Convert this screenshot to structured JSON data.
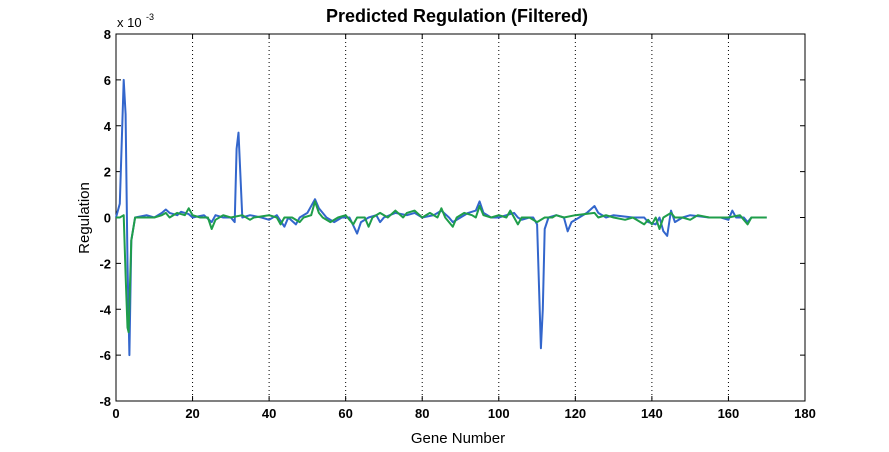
{
  "chart_data": {
    "type": "line",
    "title": "Predicted Regulation (Filtered)",
    "xlabel": "Gene Number",
    "ylabel": "Regulation",
    "y_exponent_label": "x 10",
    "y_exponent_power": "-3",
    "xlim": [
      0,
      180
    ],
    "ylim": [
      -8,
      8
    ],
    "xticks": [
      0,
      20,
      40,
      60,
      80,
      100,
      120,
      140,
      160,
      180
    ],
    "yticks": [
      -8,
      -6,
      -4,
      -2,
      0,
      2,
      4,
      6,
      8
    ],
    "x_grid": "dotted vertical lines at x ticks",
    "y_grid": false,
    "legend": "none",
    "series": [
      {
        "color": "#3366cc",
        "points": [
          [
            0,
            0.0
          ],
          [
            1,
            0.6
          ],
          [
            2,
            6.0
          ],
          [
            2.5,
            4.5
          ],
          [
            3,
            -2.0
          ],
          [
            3.5,
            -6.0
          ],
          [
            4,
            -1.0
          ],
          [
            5,
            0.0
          ],
          [
            8,
            0.1
          ],
          [
            10,
            0.0
          ],
          [
            12,
            0.2
          ],
          [
            13,
            0.35
          ],
          [
            14,
            0.2
          ],
          [
            16,
            0.1
          ],
          [
            17,
            0.25
          ],
          [
            19,
            0.15
          ],
          [
            20,
            0.0
          ],
          [
            23,
            0.1
          ],
          [
            25,
            -0.2
          ],
          [
            26,
            0.1
          ],
          [
            28,
            0.0
          ],
          [
            30,
            0.0
          ],
          [
            31,
            -0.2
          ],
          [
            31.5,
            3.0
          ],
          [
            32,
            3.7
          ],
          [
            33,
            0.0
          ],
          [
            35,
            0.1
          ],
          [
            38,
            0.0
          ],
          [
            40,
            -0.1
          ],
          [
            42,
            0.1
          ],
          [
            44,
            -0.4
          ],
          [
            45,
            0.0
          ],
          [
            47,
            -0.3
          ],
          [
            48,
            0.0
          ],
          [
            50,
            0.2
          ],
          [
            52,
            0.8
          ],
          [
            53,
            0.4
          ],
          [
            55,
            0.0
          ],
          [
            57,
            -0.2
          ],
          [
            59,
            0.0
          ],
          [
            61,
            0.0
          ],
          [
            63,
            -0.7
          ],
          [
            64,
            -0.2
          ],
          [
            66,
            0.0
          ],
          [
            68,
            0.1
          ],
          [
            69,
            -0.2
          ],
          [
            70,
            0.0
          ],
          [
            73,
            0.2
          ],
          [
            76,
            0.1
          ],
          [
            78,
            0.2
          ],
          [
            80,
            0.0
          ],
          [
            83,
            0.1
          ],
          [
            85,
            0.3
          ],
          [
            87,
            0.0
          ],
          [
            88,
            -0.2
          ],
          [
            90,
            0.0
          ],
          [
            92,
            0.2
          ],
          [
            94,
            0.3
          ],
          [
            95,
            0.7
          ],
          [
            96,
            0.2
          ],
          [
            98,
            0.0
          ],
          [
            100,
            0.0
          ],
          [
            102,
            0.1
          ],
          [
            104,
            0.2
          ],
          [
            105,
            0.0
          ],
          [
            106,
            -0.1
          ],
          [
            108,
            0.0
          ],
          [
            109,
            0.0
          ],
          [
            110,
            -0.3
          ],
          [
            110.5,
            -3.0
          ],
          [
            111,
            -5.7
          ],
          [
            111.5,
            -4.0
          ],
          [
            112,
            -0.5
          ],
          [
            113,
            0.0
          ],
          [
            115,
            0.1
          ],
          [
            117,
            0.0
          ],
          [
            118,
            -0.6
          ],
          [
            119,
            -0.2
          ],
          [
            121,
            0.0
          ],
          [
            123,
            0.2
          ],
          [
            125,
            0.5
          ],
          [
            126,
            0.2
          ],
          [
            128,
            0.0
          ],
          [
            130,
            0.1
          ],
          [
            135,
            0.0
          ],
          [
            138,
            0.0
          ],
          [
            139,
            -0.2
          ],
          [
            141,
            -0.3
          ],
          [
            142,
            0.0
          ],
          [
            143,
            -0.6
          ],
          [
            144,
            -0.8
          ],
          [
            145,
            0.3
          ],
          [
            146,
            -0.2
          ],
          [
            148,
            0.0
          ],
          [
            150,
            0.1
          ],
          [
            155,
            0.0
          ],
          [
            158,
            0.0
          ],
          [
            160,
            -0.1
          ],
          [
            161,
            0.3
          ],
          [
            162,
            0.0
          ],
          [
            164,
            0.0
          ],
          [
            165,
            -0.2
          ],
          [
            166,
            0.0
          ],
          [
            170,
            0.0
          ]
        ]
      },
      {
        "color": "#1f9e4a",
        "points": [
          [
            0,
            0.0
          ],
          [
            1,
            0.0
          ],
          [
            2,
            0.1
          ],
          [
            2.5,
            -2.5
          ],
          [
            3,
            -4.8
          ],
          [
            3.3,
            -5.0
          ],
          [
            4,
            -1.0
          ],
          [
            5,
            0.0
          ],
          [
            8,
            0.0
          ],
          [
            10,
            0.0
          ],
          [
            12,
            0.1
          ],
          [
            13,
            0.2
          ],
          [
            14,
            0.0
          ],
          [
            16,
            0.2
          ],
          [
            18,
            0.1
          ],
          [
            19,
            0.4
          ],
          [
            20,
            0.1
          ],
          [
            22,
            0.0
          ],
          [
            24,
            0.0
          ],
          [
            25,
            -0.5
          ],
          [
            26,
            -0.1
          ],
          [
            28,
            0.1
          ],
          [
            30,
            0.0
          ],
          [
            33,
            0.1
          ],
          [
            35,
            -0.1
          ],
          [
            36,
            0.0
          ],
          [
            40,
            0.1
          ],
          [
            42,
            0.0
          ],
          [
            43,
            -0.3
          ],
          [
            44,
            0.0
          ],
          [
            46,
            0.0
          ],
          [
            48,
            -0.2
          ],
          [
            49,
            0.0
          ],
          [
            51,
            0.1
          ],
          [
            52,
            0.7
          ],
          [
            53,
            0.2
          ],
          [
            54,
            0.0
          ],
          [
            56,
            -0.2
          ],
          [
            58,
            0.0
          ],
          [
            60,
            0.1
          ],
          [
            62,
            -0.3
          ],
          [
            63,
            0.0
          ],
          [
            65,
            0.0
          ],
          [
            66,
            -0.4
          ],
          [
            67,
            0.0
          ],
          [
            69,
            0.2
          ],
          [
            71,
            0.0
          ],
          [
            73,
            0.3
          ],
          [
            75,
            0.0
          ],
          [
            76,
            0.2
          ],
          [
            78,
            0.3
          ],
          [
            80,
            0.0
          ],
          [
            82,
            0.2
          ],
          [
            84,
            0.0
          ],
          [
            85,
            0.4
          ],
          [
            86,
            0.0
          ],
          [
            88,
            -0.4
          ],
          [
            89,
            0.0
          ],
          [
            91,
            0.2
          ],
          [
            93,
            0.1
          ],
          [
            94,
            0.0
          ],
          [
            95,
            0.5
          ],
          [
            96,
            0.1
          ],
          [
            98,
            0.0
          ],
          [
            100,
            0.1
          ],
          [
            102,
            0.0
          ],
          [
            103,
            0.3
          ],
          [
            104,
            0.0
          ],
          [
            105,
            -0.3
          ],
          [
            106,
            0.0
          ],
          [
            108,
            0.0
          ],
          [
            110,
            -0.2
          ],
          [
            112,
            0.0
          ],
          [
            114,
            0.0
          ],
          [
            115,
            0.1
          ],
          [
            117,
            0.0
          ],
          [
            120,
            0.1
          ],
          [
            125,
            0.2
          ],
          [
            126,
            0.0
          ],
          [
            128,
            0.1
          ],
          [
            130,
            0.0
          ],
          [
            133,
            -0.1
          ],
          [
            135,
            0.0
          ],
          [
            138,
            -0.3
          ],
          [
            139,
            -0.1
          ],
          [
            140,
            -0.3
          ],
          [
            141,
            0.0
          ],
          [
            142,
            -0.5
          ],
          [
            143,
            0.0
          ],
          [
            145,
            0.2
          ],
          [
            146,
            0.0
          ],
          [
            148,
            0.0
          ],
          [
            150,
            -0.1
          ],
          [
            152,
            0.1
          ],
          [
            155,
            0.0
          ],
          [
            160,
            0.0
          ],
          [
            163,
            0.1
          ],
          [
            165,
            -0.3
          ],
          [
            166,
            0.0
          ],
          [
            170,
            0.0
          ]
        ]
      }
    ]
  }
}
